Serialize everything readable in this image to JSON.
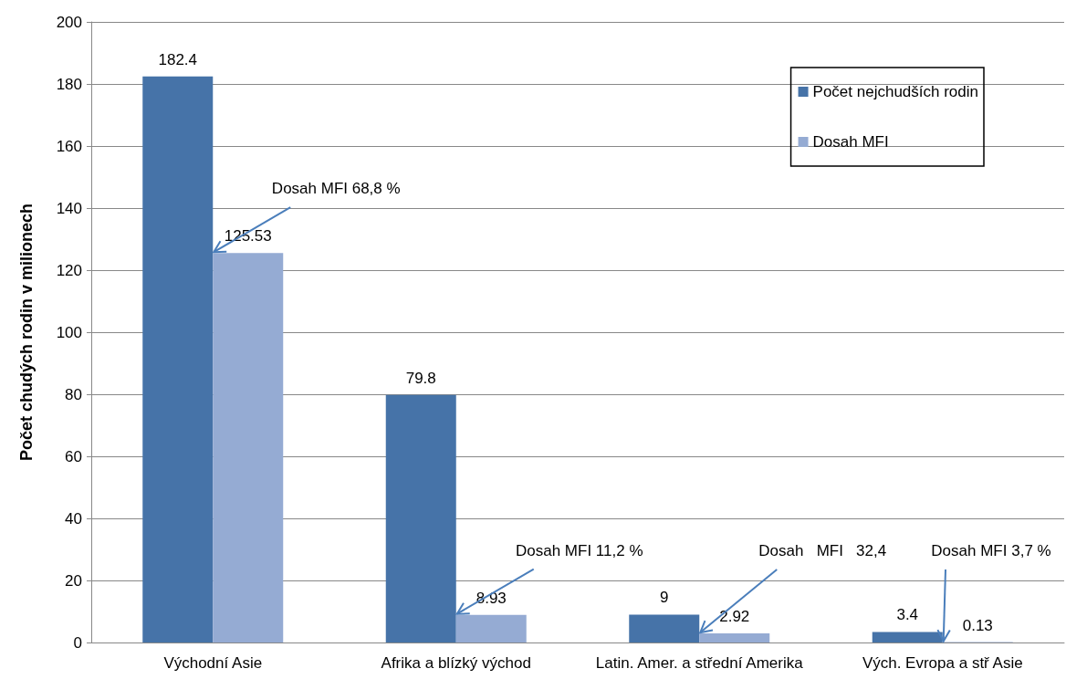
{
  "chart_data": {
    "type": "bar",
    "ylabel": "Počet chudých rodin v milionech",
    "categories": [
      "Východní Asie",
      "Afrika a blízký východ",
      "Latin. Amer. a střední Amerika",
      "Vých. Evropa a stř Asie"
    ],
    "series": [
      {
        "name": "Počet nejchudších rodin",
        "color": "#4673a8",
        "values": [
          182.4,
          79.8,
          9,
          3.4
        ]
      },
      {
        "name": "Dosah MFI",
        "color": "#95abd3",
        "values": [
          125.53,
          8.93,
          2.92,
          0.13
        ]
      }
    ],
    "ylim": [
      0,
      200
    ],
    "yticks": [
      0,
      20,
      40,
      60,
      80,
      100,
      120,
      140,
      160,
      180,
      200
    ],
    "grid": "y",
    "legend": "top right",
    "data_labels": true,
    "annotations": [
      {
        "text": "Dosah MFI 68,8 %",
        "x": "Východní Asie",
        "y": 125.53
      },
      {
        "text": "Dosah MFI 11,2 %",
        "x": "Afrika a blízký východ",
        "y": 8.93
      },
      {
        "text": "Dosah   MFI   32,4",
        "x": "Latin. Amer. a střední Amerika",
        "y": 2.92
      },
      {
        "text": "Dosah MFI 3,7 %",
        "x": "Vých. Evropa a stř Asie",
        "y": 0.13
      }
    ]
  }
}
